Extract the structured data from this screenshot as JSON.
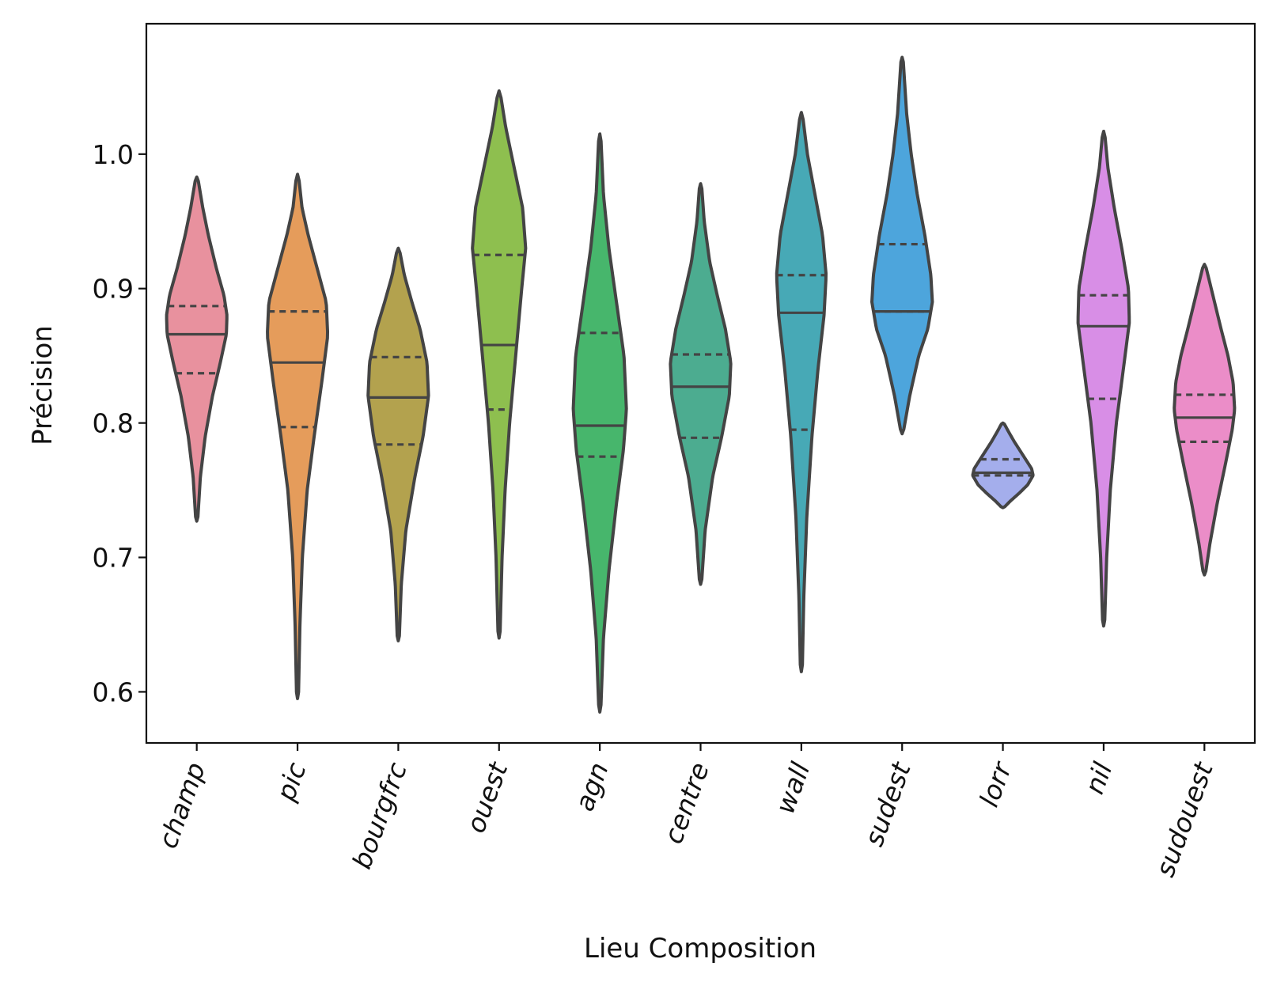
{
  "chart_data": {
    "type": "violin",
    "title": "",
    "xlabel": "Lieu Composition",
    "ylabel": "Précision",
    "ylim": [
      0.562,
      1.097
    ],
    "yticks": [
      0.6,
      0.7,
      0.8,
      0.9,
      1.0
    ],
    "ytick_labels": [
      "0.6",
      "0.7",
      "0.8",
      "0.9",
      "1.0"
    ],
    "grid": false,
    "legend": "none",
    "inner": "quartile",
    "categories": [
      "champ",
      "pic",
      "bourgfrc",
      "ouest",
      "agn",
      "centre",
      "wall",
      "sudest",
      "lorr",
      "nil",
      "sudouest"
    ],
    "series": [
      {
        "category": "champ",
        "color": "#e8919e",
        "min": 0.727,
        "max": 0.983,
        "q1": 0.837,
        "median": 0.866,
        "q3": 0.887,
        "density": [
          [
            0.727,
            0.03
          ],
          [
            0.76,
            0.12
          ],
          [
            0.79,
            0.28
          ],
          [
            0.82,
            0.52
          ],
          [
            0.845,
            0.78
          ],
          [
            0.866,
            0.98
          ],
          [
            0.88,
            1.0
          ],
          [
            0.895,
            0.9
          ],
          [
            0.915,
            0.65
          ],
          [
            0.94,
            0.38
          ],
          [
            0.96,
            0.2
          ],
          [
            0.983,
            0.03
          ]
        ]
      },
      {
        "category": "pic",
        "color": "#e59c5b",
        "min": 0.595,
        "max": 0.985,
        "q1": 0.797,
        "median": 0.845,
        "q3": 0.883,
        "density": [
          [
            0.595,
            0.03
          ],
          [
            0.65,
            0.08
          ],
          [
            0.7,
            0.16
          ],
          [
            0.75,
            0.32
          ],
          [
            0.79,
            0.55
          ],
          [
            0.83,
            0.8
          ],
          [
            0.865,
            1.0
          ],
          [
            0.89,
            0.95
          ],
          [
            0.915,
            0.65
          ],
          [
            0.94,
            0.35
          ],
          [
            0.96,
            0.15
          ],
          [
            0.985,
            0.03
          ]
        ]
      },
      {
        "category": "bourgfrc",
        "color": "#b3a24e",
        "min": 0.638,
        "max": 0.93,
        "q1": 0.784,
        "median": 0.819,
        "q3": 0.849,
        "density": [
          [
            0.638,
            0.03
          ],
          [
            0.68,
            0.1
          ],
          [
            0.72,
            0.25
          ],
          [
            0.76,
            0.55
          ],
          [
            0.79,
            0.82
          ],
          [
            0.82,
            1.0
          ],
          [
            0.845,
            0.95
          ],
          [
            0.87,
            0.72
          ],
          [
            0.89,
            0.45
          ],
          [
            0.91,
            0.2
          ],
          [
            0.93,
            0.03
          ]
        ]
      },
      {
        "category": "ouest",
        "color": "#8ebf4f",
        "min": 0.64,
        "max": 1.047,
        "q1": 0.81,
        "median": 0.858,
        "q3": 0.925,
        "density": [
          [
            0.64,
            0.03
          ],
          [
            0.7,
            0.1
          ],
          [
            0.75,
            0.2
          ],
          [
            0.8,
            0.35
          ],
          [
            0.85,
            0.55
          ],
          [
            0.9,
            0.75
          ],
          [
            0.93,
            0.88
          ],
          [
            0.96,
            0.78
          ],
          [
            0.99,
            0.5
          ],
          [
            1.02,
            0.22
          ],
          [
            1.047,
            0.03
          ]
        ]
      },
      {
        "category": "agn",
        "color": "#47b66c",
        "min": 0.585,
        "max": 1.015,
        "q1": 0.775,
        "median": 0.798,
        "q3": 0.867,
        "density": [
          [
            0.585,
            0.03
          ],
          [
            0.64,
            0.12
          ],
          [
            0.69,
            0.3
          ],
          [
            0.74,
            0.55
          ],
          [
            0.78,
            0.78
          ],
          [
            0.81,
            0.88
          ],
          [
            0.85,
            0.8
          ],
          [
            0.89,
            0.55
          ],
          [
            0.93,
            0.3
          ],
          [
            0.97,
            0.12
          ],
          [
            1.015,
            0.03
          ]
        ]
      },
      {
        "category": "centre",
        "color": "#4cac90",
        "min": 0.68,
        "max": 0.978,
        "q1": 0.789,
        "median": 0.827,
        "q3": 0.851,
        "density": [
          [
            0.68,
            0.03
          ],
          [
            0.72,
            0.15
          ],
          [
            0.76,
            0.4
          ],
          [
            0.79,
            0.7
          ],
          [
            0.82,
            0.95
          ],
          [
            0.845,
            1.0
          ],
          [
            0.87,
            0.82
          ],
          [
            0.895,
            0.55
          ],
          [
            0.92,
            0.3
          ],
          [
            0.95,
            0.12
          ],
          [
            0.978,
            0.03
          ]
        ]
      },
      {
        "category": "wall",
        "color": "#47a9b6",
        "min": 0.615,
        "max": 1.031,
        "q1": 0.795,
        "median": 0.882,
        "q3": 0.91,
        "density": [
          [
            0.615,
            0.03
          ],
          [
            0.67,
            0.08
          ],
          [
            0.73,
            0.18
          ],
          [
            0.79,
            0.35
          ],
          [
            0.84,
            0.55
          ],
          [
            0.88,
            0.75
          ],
          [
            0.91,
            0.82
          ],
          [
            0.94,
            0.7
          ],
          [
            0.97,
            0.45
          ],
          [
            1.0,
            0.2
          ],
          [
            1.031,
            0.03
          ]
        ]
      },
      {
        "category": "sudest",
        "color": "#4da5dc",
        "min": 0.792,
        "max": 1.072,
        "q1": 0.883,
        "median": 0.883,
        "q3": 0.933,
        "density": [
          [
            0.792,
            0.03
          ],
          [
            0.82,
            0.25
          ],
          [
            0.85,
            0.55
          ],
          [
            0.87,
            0.85
          ],
          [
            0.89,
            1.0
          ],
          [
            0.91,
            0.95
          ],
          [
            0.94,
            0.75
          ],
          [
            0.97,
            0.5
          ],
          [
            1.0,
            0.3
          ],
          [
            1.03,
            0.15
          ],
          [
            1.072,
            0.03
          ]
        ]
      },
      {
        "category": "lorr",
        "color": "#a4aeec",
        "min": 0.737,
        "max": 0.8,
        "q1": 0.761,
        "median": 0.763,
        "q3": 0.773,
        "density": [
          [
            0.737,
            0.03
          ],
          [
            0.742,
            0.25
          ],
          [
            0.748,
            0.55
          ],
          [
            0.754,
            0.82
          ],
          [
            0.761,
            1.0
          ],
          [
            0.766,
            0.95
          ],
          [
            0.772,
            0.78
          ],
          [
            0.779,
            0.58
          ],
          [
            0.786,
            0.38
          ],
          [
            0.793,
            0.2
          ],
          [
            0.8,
            0.03
          ]
        ]
      },
      {
        "category": "nil",
        "color": "#d88ee6",
        "min": 0.649,
        "max": 1.017,
        "q1": 0.818,
        "median": 0.872,
        "q3": 0.895,
        "density": [
          [
            0.649,
            0.03
          ],
          [
            0.7,
            0.1
          ],
          [
            0.75,
            0.22
          ],
          [
            0.8,
            0.42
          ],
          [
            0.845,
            0.68
          ],
          [
            0.875,
            0.85
          ],
          [
            0.9,
            0.82
          ],
          [
            0.93,
            0.6
          ],
          [
            0.96,
            0.35
          ],
          [
            0.99,
            0.14
          ],
          [
            1.017,
            0.03
          ]
        ]
      },
      {
        "category": "sudouest",
        "color": "#eb8dc8",
        "min": 0.687,
        "max": 0.918,
        "q1": 0.786,
        "median": 0.804,
        "q3": 0.821,
        "density": [
          [
            0.687,
            0.03
          ],
          [
            0.71,
            0.18
          ],
          [
            0.74,
            0.42
          ],
          [
            0.77,
            0.7
          ],
          [
            0.795,
            0.92
          ],
          [
            0.81,
            1.0
          ],
          [
            0.83,
            0.95
          ],
          [
            0.85,
            0.78
          ],
          [
            0.87,
            0.55
          ],
          [
            0.895,
            0.28
          ],
          [
            0.918,
            0.03
          ]
        ]
      }
    ]
  }
}
